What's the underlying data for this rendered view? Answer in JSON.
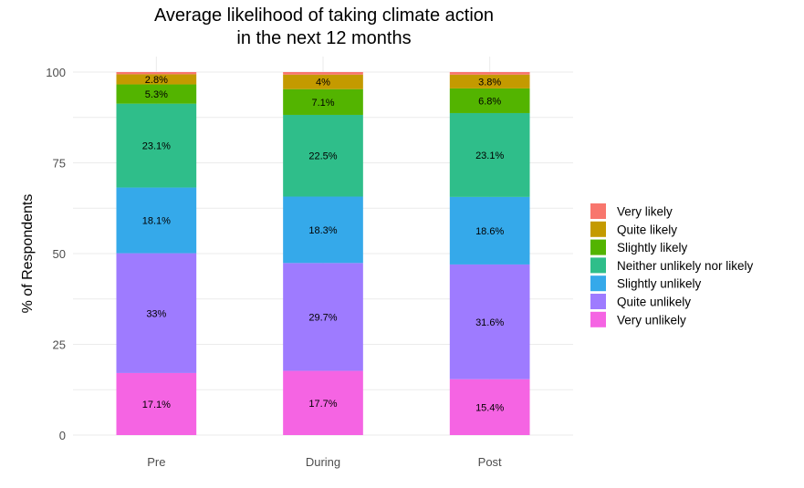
{
  "chart_data": {
    "type": "bar",
    "stacked": true,
    "title_lines": [
      "Average likelihood of taking climate action",
      "in the next 12 months"
    ],
    "ylabel": "% of Respondents",
    "xlabel": "",
    "ylim": [
      0,
      100
    ],
    "yticks": [
      "0",
      "25",
      "50",
      "75",
      "100"
    ],
    "categories": [
      "Pre",
      "During",
      "Post"
    ],
    "grid": true,
    "legend_position": "right",
    "series": [
      {
        "name": "Very unlikely",
        "color": "#f564e3",
        "values": [
          17.1,
          17.7,
          15.4
        ],
        "labels": [
          "17.1%",
          "17.7%",
          "15.4%"
        ]
      },
      {
        "name": "Quite unlikely",
        "color": "#9e7bff",
        "values": [
          33,
          29.7,
          31.6
        ],
        "labels": [
          "33%",
          "29.7%",
          "31.6%"
        ]
      },
      {
        "name": "Slightly unlikely",
        "color": "#35a9ea",
        "values": [
          18.1,
          18.3,
          18.6
        ],
        "labels": [
          "18.1%",
          "18.3%",
          "18.6%"
        ]
      },
      {
        "name": "Neither unlikely nor likely",
        "color": "#2fbe8a",
        "values": [
          23.1,
          22.5,
          23.1
        ],
        "labels": [
          "23.1%",
          "22.5%",
          "23.1%"
        ]
      },
      {
        "name": "Slightly likely",
        "color": "#53b400",
        "values": [
          5.3,
          7.1,
          6.8
        ],
        "labels": [
          "5.3%",
          "7.1%",
          "6.8%"
        ]
      },
      {
        "name": "Quite likely",
        "color": "#c49a00",
        "values": [
          2.8,
          4,
          3.8
        ],
        "labels": [
          "2.8%",
          "4%",
          "3.8%"
        ]
      },
      {
        "name": "Very likely",
        "color": "#f8766d",
        "values": [
          0.6,
          0.7,
          0.7
        ],
        "labels": [
          "",
          "",
          ""
        ]
      }
    ],
    "legend_order": [
      "Very likely",
      "Quite likely",
      "Slightly likely",
      "Neither unlikely nor likely",
      "Slightly unlikely",
      "Quite unlikely",
      "Very unlikely"
    ]
  }
}
